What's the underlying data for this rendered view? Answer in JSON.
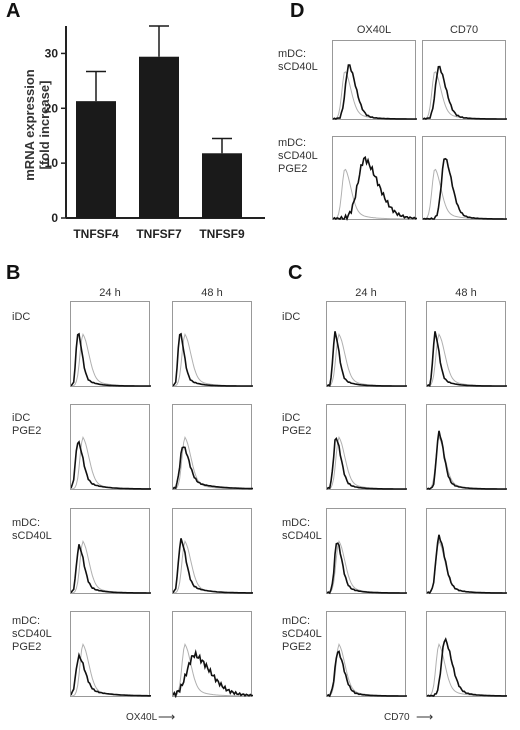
{
  "panels": {
    "A": "A",
    "B": "B",
    "C": "C",
    "D": "D"
  },
  "chart_data": [
    {
      "type": "bar",
      "categories": [
        "TNFSF4",
        "TNFSF7",
        "TNFSF9"
      ],
      "values": [
        21.3,
        29.4,
        11.8
      ],
      "errors": [
        5.4,
        5.6,
        2.7
      ],
      "ylabel": "mRNA expression\n[fold increase]",
      "ylim": [
        0,
        35
      ],
      "yticks": [
        0,
        10,
        20,
        30
      ]
    },
    {
      "type": "histogram-grid",
      "columns": [
        "24 h",
        "48 h"
      ],
      "rows": [
        "iDC",
        "iDC\nPGE2",
        "mDC:\nsCD40L",
        "mDC:\nsCD40L\nPGE2"
      ],
      "xlabel": "OX40L"
    },
    {
      "type": "histogram-grid",
      "columns": [
        "24 h",
        "48 h"
      ],
      "rows": [
        "iDC",
        "iDC\nPGE2",
        "mDC:\nsCD40L",
        "mDC:\nsCD40L\nPGE2"
      ],
      "xlabel": "CD70"
    },
    {
      "type": "histogram-grid",
      "columns": [
        "OX40L",
        "CD70"
      ],
      "rows": [
        "mDC:\nsCD40L",
        "mDC:\nsCD40L\nPGE2"
      ]
    }
  ]
}
